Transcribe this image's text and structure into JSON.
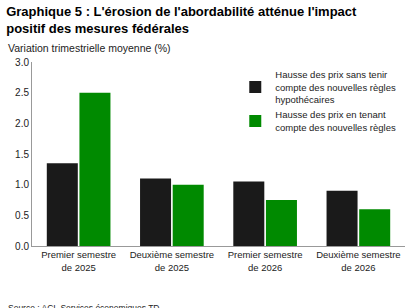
{
  "chart_data": {
    "type": "bar",
    "title": "Graphique 5 : L'érosion de l'abordabilité atténue l'impact positif des mesures fédérales",
    "subtitle": "Variation trimestrielle moyenne (%)",
    "annotations": [
      "Source : ACI, Services économiques TD."
    ],
    "categories": [
      "Premier semestre de 2025",
      "Deuxième semestre de 2025",
      "Premier semestre de 2026",
      "Deuxième semestre de 2026"
    ],
    "series": [
      {
        "name": "Hausse des prix sans tenir compte des nouvelles règles hypothécaires",
        "color": "#1a1a1a",
        "values": [
          1.35,
          1.1,
          1.05,
          0.9
        ]
      },
      {
        "name": "Hausse des prix en tenant compte des nouvelles règles",
        "color": "#008a00",
        "values": [
          2.5,
          1.0,
          0.75,
          0.6
        ]
      }
    ],
    "ylim": [
      0,
      3
    ],
    "yticks": [
      {
        "value": 0,
        "label": "0.0"
      },
      0.5,
      {
        "value": 1,
        "label": "1.0"
      },
      1.5,
      {
        "value": 2,
        "label": "2.0"
      },
      2.5,
      {
        "value": 3,
        "label": "3.0"
      }
    ],
    "grid": false,
    "legend": "upper right"
  }
}
